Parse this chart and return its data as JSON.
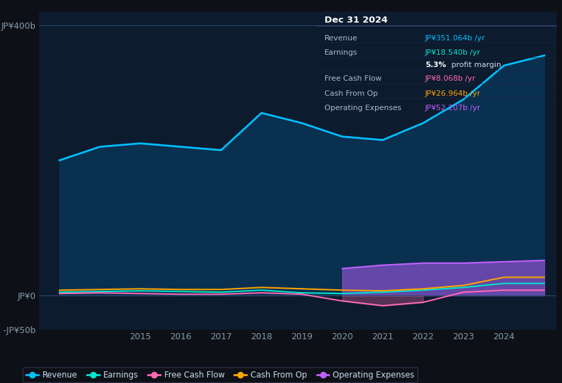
{
  "bg_color": "#0d1117",
  "plot_bg_color": "#0d1b2e",
  "years": [
    2013,
    2014,
    2015,
    2016,
    2017,
    2018,
    2019,
    2020,
    2021,
    2022,
    2023,
    2024,
    2025
  ],
  "revenue": [
    200,
    220,
    225,
    220,
    215,
    270,
    255,
    235,
    230,
    255,
    290,
    340,
    355
  ],
  "earnings": [
    5,
    6,
    7,
    6,
    5,
    8,
    4,
    3,
    5,
    8,
    12,
    18,
    18
  ],
  "free_cash_flow": [
    3,
    4,
    3,
    2,
    2,
    4,
    2,
    -8,
    -15,
    -10,
    5,
    8,
    8
  ],
  "cash_from_op": [
    8,
    9,
    10,
    9,
    9,
    12,
    10,
    8,
    7,
    10,
    15,
    27,
    27
  ],
  "operating_expenses": [
    0,
    0,
    0,
    0,
    0,
    0,
    0,
    40,
    45,
    48,
    48,
    50,
    52
  ],
  "revenue_color": "#00bfff",
  "earnings_color": "#00e5cc",
  "free_cash_flow_color": "#ff69b4",
  "cash_from_op_color": "#ffa500",
  "operating_expenses_color": "#bf5fff",
  "revenue_fill_color": "#0a3050",
  "ylim": [
    -50,
    420
  ],
  "yticks": [
    -50,
    0,
    400
  ],
  "ytick_labels": [
    "-JP¥50b",
    "JP¥0",
    "JP¥400b"
  ],
  "xlabel_years": [
    2015,
    2016,
    2017,
    2018,
    2019,
    2020,
    2021,
    2022,
    2023,
    2024
  ],
  "title_box_date": "Dec 31 2024",
  "info_rows": [
    {
      "label": "Revenue",
      "value": "JP¥351.064b /yr",
      "value_color": "#00bfff",
      "bold_prefix": null
    },
    {
      "label": "Earnings",
      "value": "JP¥18.540b /yr",
      "value_color": "#00e5cc",
      "bold_prefix": null
    },
    {
      "label": "",
      "value": " profit margin",
      "value_color": "#ccddee",
      "bold_prefix": "5.3%"
    },
    {
      "label": "Free Cash Flow",
      "value": "JP¥8.068b /yr",
      "value_color": "#ff69b4",
      "bold_prefix": null
    },
    {
      "label": "Cash From Op",
      "value": "JP¥26.964b /yr",
      "value_color": "#ffa500",
      "bold_prefix": null
    },
    {
      "label": "Operating Expenses",
      "value": "JP¥52.207b /yr",
      "value_color": "#bf5fff",
      "bold_prefix": null
    }
  ],
  "legend_items": [
    {
      "label": "Revenue",
      "color": "#00bfff"
    },
    {
      "label": "Earnings",
      "color": "#00e5cc"
    },
    {
      "label": "Free Cash Flow",
      "color": "#ff69b4"
    },
    {
      "label": "Cash From Op",
      "color": "#ffa500"
    },
    {
      "label": "Operating Expenses",
      "color": "#bf5fff"
    }
  ]
}
